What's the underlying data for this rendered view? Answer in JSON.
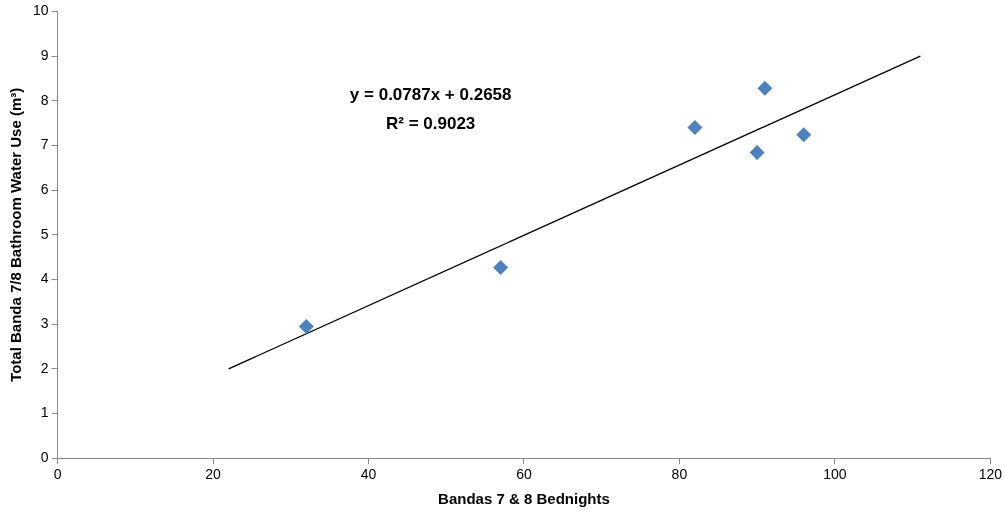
{
  "chart_data": {
    "type": "scatter",
    "xlabel": "Bandas 7 & 8 Bednights",
    "ylabel": "Total Banda 7/8 Bathroom Water Use (m³)",
    "annotations": [
      "y = 0.0787x + 0.2658",
      "R² = 0.9023"
    ],
    "xlim": [
      0,
      120
    ],
    "xticks": [
      0,
      20,
      40,
      60,
      80,
      100,
      120
    ],
    "ylim": [
      0,
      10
    ],
    "yticks": [
      0,
      1,
      2,
      3,
      4,
      5,
      6,
      7,
      8,
      9,
      10
    ],
    "grid": false,
    "legend": false,
    "marker": "diamond",
    "series": [
      {
        "color": "#4f81bd",
        "x": [
          32,
          57,
          82,
          91,
          90,
          96
        ],
        "values": [
          2.95,
          4.27,
          7.4,
          8.28,
          6.84,
          7.24
        ]
      },
      {
        "type": "line",
        "color": "#000000",
        "marker": "none",
        "line_style": "solid",
        "x": [
          22,
          111
        ],
        "values": [
          2.0,
          9.0
        ]
      }
    ]
  }
}
